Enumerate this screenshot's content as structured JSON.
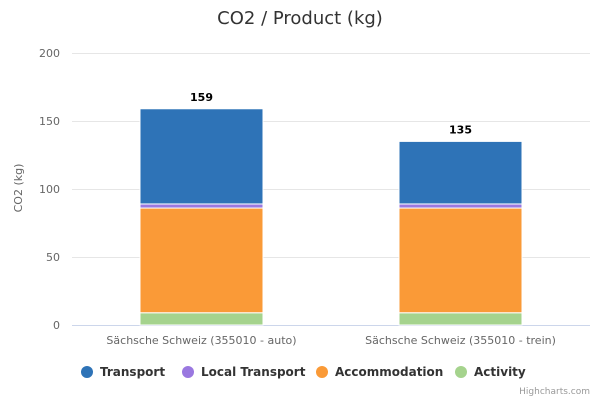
{
  "chart_data": {
    "type": "bar",
    "stacked": true,
    "title": "CO2 / Product (kg)",
    "xlabel": "",
    "ylabel": "CO2 (kg)",
    "ylim": [
      0,
      200
    ],
    "yticks": [
      0,
      50,
      100,
      150,
      200
    ],
    "categories": [
      "Sächsche Schweiz (355010 - auto)",
      "Sächsche Schweiz (355010 - trein)"
    ],
    "totals": [
      159,
      135
    ],
    "series": [
      {
        "name": "Activity",
        "color": "#a5d38d",
        "values": [
          9,
          9
        ]
      },
      {
        "name": "Accommodation",
        "color": "#fa9a37",
        "values": [
          77,
          77
        ]
      },
      {
        "name": "Local Transport",
        "color": "#9a78e0",
        "values": [
          3,
          3
        ]
      },
      {
        "name": "Transport",
        "color": "#2e73b7",
        "values": [
          70,
          46
        ]
      }
    ],
    "legend": [
      "Transport",
      "Local Transport",
      "Accommodation",
      "Activity"
    ],
    "legend_position": "bottom",
    "credits": "Highcharts.com"
  }
}
